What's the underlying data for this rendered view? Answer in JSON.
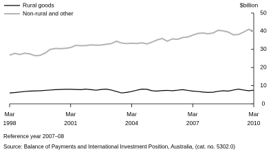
{
  "chart_data": {
    "type": "line",
    "y_label": "$billion",
    "x": [
      "Mar 1998",
      "Jun 1998",
      "Sep 1998",
      "Dec 1998",
      "Mar 1999",
      "Jun 1999",
      "Sep 1999",
      "Dec 1999",
      "Mar 2000",
      "Jun 2000",
      "Sep 2000",
      "Dec 2000",
      "Mar 2001",
      "Jun 2001",
      "Sep 2001",
      "Dec 2001",
      "Mar 2002",
      "Jun 2002",
      "Sep 2002",
      "Dec 2002",
      "Mar 2003",
      "Jun 2003",
      "Sep 2003",
      "Dec 2003",
      "Mar 2004",
      "Jun 2004",
      "Sep 2004",
      "Dec 2004",
      "Mar 2005",
      "Jun 2005",
      "Sep 2005",
      "Dec 2005",
      "Mar 2006",
      "Jun 2006",
      "Sep 2006",
      "Dec 2006",
      "Mar 2007",
      "Jun 2007",
      "Sep 2007",
      "Dec 2007",
      "Mar 2008",
      "Jun 2008",
      "Sep 2008",
      "Dec 2008",
      "Mar 2009",
      "Jun 2009",
      "Sep 2009",
      "Dec 2009",
      "Mar 2010"
    ],
    "series": [
      {
        "name": "Rural goods",
        "color": "#000000",
        "values": [
          6.0,
          6.2,
          6.5,
          6.8,
          7.0,
          7.1,
          7.2,
          7.4,
          7.6,
          7.8,
          7.9,
          8.0,
          8.0,
          7.9,
          7.8,
          8.1,
          7.8,
          7.5,
          7.9,
          8.1,
          7.6,
          6.8,
          6.0,
          6.3,
          6.8,
          7.5,
          8.1,
          8.0,
          7.2,
          7.0,
          7.3,
          7.4,
          7.2,
          7.5,
          7.8,
          7.4,
          7.0,
          6.8,
          6.5,
          6.3,
          6.4,
          6.9,
          7.2,
          7.0,
          7.6,
          8.1,
          7.6,
          7.2,
          7.5
        ]
      },
      {
        "name": "Non-rural and other",
        "color": "#b3b3b3",
        "values": [
          26.8,
          27.8,
          27.2,
          27.9,
          27.5,
          26.5,
          26.7,
          28.0,
          30.0,
          30.5,
          30.4,
          30.6,
          31.0,
          32.2,
          32.0,
          32.1,
          32.5,
          32.3,
          32.4,
          32.8,
          33.2,
          34.5,
          33.5,
          33.2,
          33.4,
          33.2,
          33.6,
          33.0,
          34.0,
          35.2,
          36.0,
          34.5,
          35.8,
          35.5,
          36.5,
          36.8,
          37.8,
          38.8,
          39.0,
          38.6,
          39.0,
          40.5,
          40.2,
          39.5,
          38.0,
          38.2,
          39.5,
          41.0,
          40.0
        ]
      }
    ],
    "xticks": [
      "Mar 1998",
      "Mar 2001",
      "Mar 2004",
      "Mar 2007",
      "Mar 2010"
    ],
    "ylim": [
      0,
      50
    ],
    "yticks": [
      0,
      10,
      20,
      30,
      40,
      50
    ],
    "notes": [
      "Reference year 2007–08",
      "Source: Balance of Payments and International Investment Position, Australia, (cat. no. 5302.0)"
    ]
  }
}
